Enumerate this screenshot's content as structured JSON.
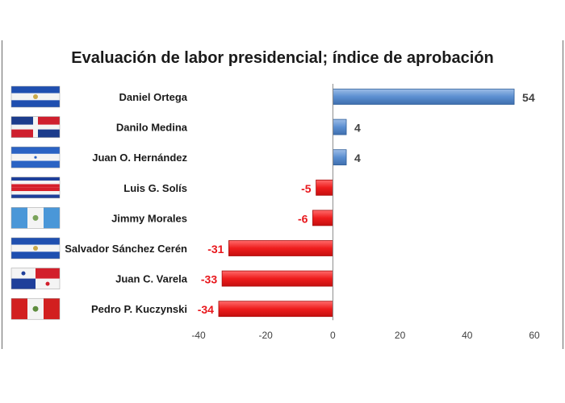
{
  "chart_data": {
    "type": "bar",
    "orientation": "horizontal",
    "title": "Evaluación de labor presidencial; índice de aprobación",
    "categories": [
      "Daniel Ortega",
      "Danilo Medina",
      "Juan O. Hernández",
      "Luis G. Solís",
      "Jimmy Morales",
      "Salvador Sánchez Cerén",
      "Juan C. Varela",
      "Pedro P. Kuczynski"
    ],
    "values": [
      54,
      4,
      4,
      -5,
      -6,
      -31,
      -33,
      -34
    ],
    "data_labels": [
      "54",
      "4",
      "4",
      "-5",
      "-6",
      "-31",
      "-33",
      "-34"
    ],
    "flags": [
      "El Salvador",
      "Dominican Republic",
      "Honduras",
      "Costa Rica",
      "Guatemala",
      "El Salvador",
      "Panama",
      "Peru"
    ],
    "xlim": [
      -40,
      60
    ],
    "xticks": [
      -40,
      -20,
      0,
      20,
      40,
      60
    ],
    "xtick_labels": [
      "-40",
      "-20",
      "0",
      "20",
      "40",
      "60"
    ],
    "grid": false,
    "colors": {
      "positive": "#4f81bd",
      "negative": "#e8161b",
      "positive_label": "#404040",
      "negative_label": "#e8161b"
    }
  }
}
